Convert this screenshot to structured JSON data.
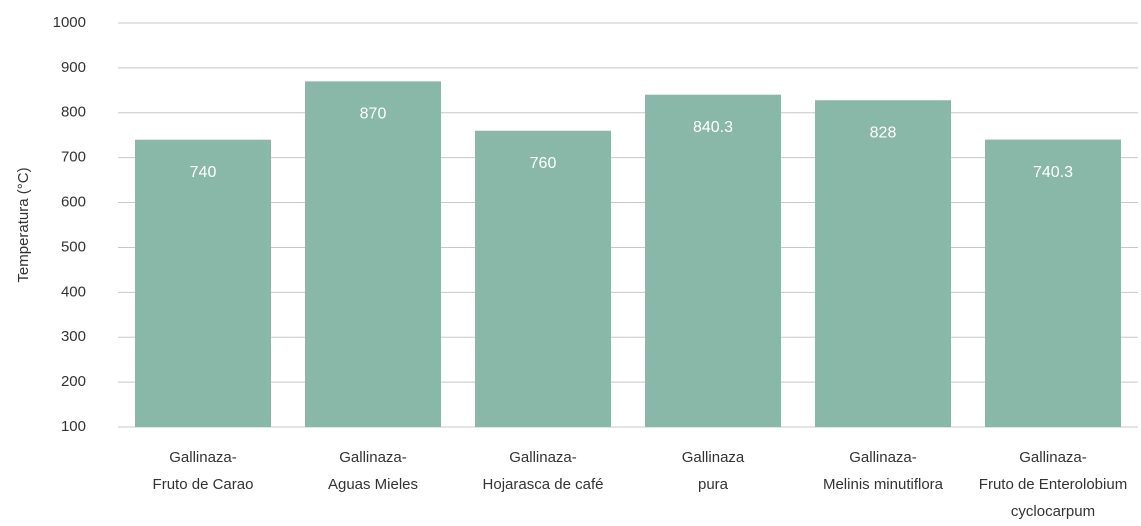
{
  "chart_data": {
    "type": "bar",
    "y_label": "Temperatura (°C)",
    "categories": [
      [
        "Gallinaza-",
        "Fruto de Carao"
      ],
      [
        "Gallinaza-",
        "Aguas Mieles"
      ],
      [
        "Gallinaza-",
        "Hojarasca de café"
      ],
      [
        "Gallinaza",
        "pura"
      ],
      [
        "Gallinaza-",
        "Melinis minutiflora"
      ],
      [
        "Gallinaza-",
        "Fruto de Enterolobium",
        "cyclocarpum"
      ]
    ],
    "values": [
      740,
      870,
      760,
      840.3,
      828,
      740.3
    ],
    "color": "#8ab8a8",
    "ylim": [
      100,
      1000
    ],
    "yticks": [
      100,
      200,
      300,
      400,
      500,
      600,
      700,
      800,
      900,
      1000
    ],
    "grid": true
  }
}
